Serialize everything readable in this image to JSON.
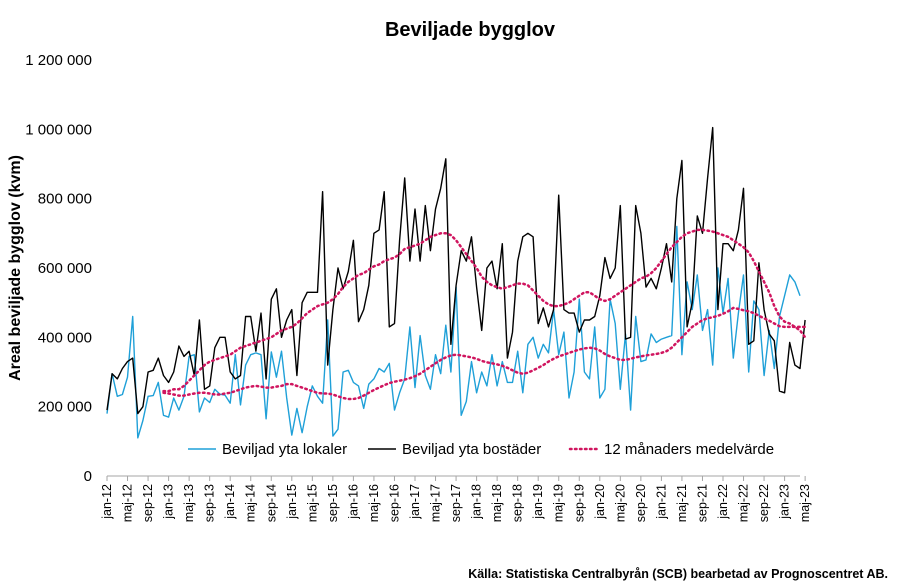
{
  "chart_data": {
    "type": "line",
    "title": "Beviljade bygglov",
    "ylabel": "Areal beviljade bygglov (kvm)",
    "ylim": [
      0,
      1200000
    ],
    "yticks": [
      0,
      200000,
      400000,
      600000,
      800000,
      1000000,
      1200000
    ],
    "ytick_labels": [
      "0",
      "200 000",
      "400 000",
      "600 000",
      "800 000",
      "1 000 000",
      "1 200 000"
    ],
    "x_labels": [
      "jan-12",
      "maj-12",
      "sep-12",
      "jan-13",
      "maj-13",
      "sep-13",
      "jan-14",
      "maj-14",
      "sep-14",
      "jan-15",
      "maj-15",
      "sep-15",
      "jan-16",
      "maj-16",
      "sep-16",
      "jan-17",
      "maj-17",
      "sep-17",
      "jan-18",
      "maj-18",
      "sep-18",
      "jan-19",
      "maj-19",
      "sep-19",
      "jan-20",
      "maj-20",
      "sep-20",
      "jan-21",
      "maj-21",
      "sep-21",
      "jan-22",
      "maj-22",
      "sep-22",
      "jan-23",
      "maj-23"
    ],
    "x_start": "jan-12",
    "x_end": "jul-23",
    "series": [
      {
        "name": "Beviljad yta lokaler",
        "color": "#1fa0d8",
        "style": "solid",
        "values": [
          180000,
          295000,
          230000,
          235000,
          285000,
          460000,
          110000,
          160000,
          230000,
          232000,
          270000,
          175000,
          170000,
          225000,
          190000,
          230000,
          345000,
          350000,
          185000,
          225000,
          212000,
          250000,
          236000,
          233000,
          210000,
          350000,
          205000,
          320000,
          350000,
          355000,
          350000,
          165000,
          358000,
          285000,
          360000,
          225000,
          118000,
          195000,
          125000,
          200000,
          260000,
          230000,
          210000,
          450000,
          115000,
          135000,
          300000,
          305000,
          270000,
          260000,
          195000,
          265000,
          280000,
          310000,
          300000,
          325000,
          190000,
          240000,
          280000,
          430000,
          255000,
          405000,
          290000,
          250000,
          350000,
          295000,
          435000,
          300000,
          545000,
          175000,
          215000,
          330000,
          240000,
          300000,
          260000,
          350000,
          260000,
          330000,
          270000,
          270000,
          360000,
          240000,
          380000,
          400000,
          340000,
          380000,
          355000,
          480000,
          350000,
          415000,
          225000,
          300000,
          510000,
          300000,
          280000,
          430000,
          225000,
          250000,
          510000,
          440000,
          250000,
          410000,
          190000,
          460000,
          330000,
          335000,
          410000,
          385000,
          395000,
          400000,
          405000,
          720000,
          350000,
          560000,
          480000,
          580000,
          420000,
          480000,
          320000,
          600000,
          470000,
          570000,
          340000,
          470000,
          580000,
          300000,
          505000,
          480000,
          290000,
          420000,
          310000,
          460000,
          520000,
          580000,
          560000,
          520000
        ]
      },
      {
        "name": "Beviljad yta bostäder",
        "color": "#000000",
        "style": "solid",
        "values": [
          190000,
          295000,
          280000,
          310000,
          330000,
          340000,
          180000,
          200000,
          300000,
          305000,
          340000,
          290000,
          270000,
          300000,
          375000,
          345000,
          360000,
          290000,
          450000,
          250000,
          260000,
          370000,
          400000,
          400000,
          300000,
          280000,
          290000,
          460000,
          460000,
          360000,
          470000,
          280000,
          510000,
          540000,
          400000,
          450000,
          480000,
          290000,
          500000,
          530000,
          530000,
          530000,
          820000,
          320000,
          480000,
          600000,
          540000,
          590000,
          680000,
          445000,
          480000,
          550000,
          700000,
          710000,
          820000,
          430000,
          440000,
          680000,
          860000,
          620000,
          770000,
          620000,
          780000,
          650000,
          770000,
          830000,
          915000,
          380000,
          550000,
          650000,
          620000,
          690000,
          545000,
          420000,
          600000,
          620000,
          540000,
          670000,
          340000,
          415000,
          620000,
          690000,
          700000,
          690000,
          440000,
          485000,
          430000,
          480000,
          810000,
          480000,
          470000,
          470000,
          415000,
          450000,
          450000,
          460000,
          520000,
          630000,
          570000,
          600000,
          780000,
          395000,
          400000,
          780000,
          700000,
          545000,
          570000,
          540000,
          600000,
          670000,
          560000,
          800000,
          910000,
          430000,
          500000,
          750000,
          700000,
          860000,
          1005000,
          480000,
          670000,
          670000,
          650000,
          710000,
          830000,
          380000,
          390000,
          615000,
          480000,
          410000,
          390000,
          245000,
          240000,
          385000,
          320000,
          310000,
          450000
        ]
      },
      {
        "name": "12 månaders medelvärde",
        "color": "#d0155f",
        "style": "dotted",
        "values": [
          null,
          null,
          null,
          null,
          null,
          null,
          null,
          null,
          null,
          null,
          null,
          245000,
          245000,
          250000,
          250000,
          260000,
          275000,
          290000,
          305000,
          320000,
          330000,
          335000,
          340000,
          345000,
          350000,
          360000,
          370000,
          375000,
          380000,
          385000,
          390000,
          395000,
          400000,
          410000,
          420000,
          425000,
          430000,
          440000,
          455000,
          470000,
          480000,
          490000,
          495000,
          500000,
          510000,
          525000,
          545000,
          560000,
          570000,
          580000,
          585000,
          595000,
          605000,
          610000,
          620000,
          625000,
          630000,
          640000,
          655000,
          660000,
          665000,
          670000,
          680000,
          690000,
          695000,
          700000,
          700000,
          695000,
          680000,
          660000,
          640000,
          620000,
          600000,
          575000,
          560000,
          550000,
          545000,
          540000,
          545000,
          550000,
          555000,
          555000,
          550000,
          535000,
          520000,
          505000,
          495000,
          490000,
          490000,
          495000,
          500000,
          510000,
          520000,
          530000,
          530000,
          520000,
          510000,
          505000,
          510000,
          520000,
          530000,
          540000,
          550000,
          560000,
          570000,
          575000,
          585000,
          600000,
          620000,
          640000,
          660000,
          675000,
          690000,
          700000,
          705000,
          710000,
          710000,
          708000,
          705000,
          700000,
          695000,
          690000,
          680000,
          670000,
          660000,
          645000,
          620000,
          590000,
          560000,
          530000,
          490000,
          460000,
          445000,
          440000,
          430000,
          420000,
          400000
        ],
        "values_lower": [
          null,
          null,
          null,
          null,
          null,
          null,
          null,
          null,
          null,
          null,
          null,
          240000,
          238000,
          235000,
          232000,
          232000,
          235000,
          238000,
          240000,
          240000,
          238000,
          235000,
          235000,
          238000,
          240000,
          245000,
          250000,
          255000,
          258000,
          260000,
          258000,
          255000,
          255000,
          258000,
          260000,
          265000,
          265000,
          260000,
          255000,
          250000,
          245000,
          240000,
          238000,
          238000,
          235000,
          230000,
          225000,
          222000,
          222000,
          225000,
          232000,
          240000,
          248000,
          255000,
          262000,
          268000,
          272000,
          275000,
          278000,
          282000,
          288000,
          295000,
          305000,
          315000,
          325000,
          335000,
          342000,
          348000,
          350000,
          348000,
          345000,
          342000,
          338000,
          332000,
          328000,
          325000,
          322000,
          318000,
          312000,
          305000,
          298000,
          295000,
          298000,
          305000,
          312000,
          320000,
          330000,
          338000,
          345000,
          350000,
          355000,
          360000,
          365000,
          368000,
          370000,
          368000,
          362000,
          352000,
          345000,
          340000,
          335000,
          335000,
          338000,
          342000,
          345000,
          348000,
          350000,
          352000,
          355000,
          360000,
          370000,
          385000,
          400000,
          415000,
          430000,
          440000,
          450000,
          455000,
          458000,
          462000,
          468000,
          475000,
          485000,
          482000,
          478000,
          475000,
          470000,
          462000,
          455000,
          448000,
          440000,
          432000,
          430000,
          430000,
          430000,
          430000,
          430000
        ]
      }
    ],
    "legend": [
      {
        "label": "Beviljad yta lokaler",
        "color": "#1fa0d8",
        "style": "solid"
      },
      {
        "label": "Beviljad yta bostäder",
        "color": "#000000",
        "style": "solid"
      },
      {
        "label": "12 månaders medelvärde",
        "color": "#d0155f",
        "style": "dotted"
      }
    ],
    "legend_position": "bottom-center inside plot",
    "grid": false,
    "source": "Källa: Statistiska Centralbyrån (SCB) bearbetad av Prognoscentret AB."
  }
}
